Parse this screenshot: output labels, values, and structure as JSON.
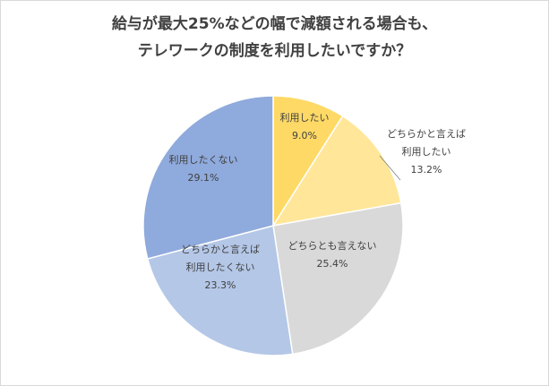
{
  "chart_data": {
    "type": "pie",
    "title": [
      "給与が最大25%などの幅で減額される場合も、",
      "テレワークの制度を利用したいですか？"
    ],
    "slices": [
      {
        "label": [
          "利用したい"
        ],
        "value": 9.0,
        "value_label": "9.0%",
        "color": "#ffd966"
      },
      {
        "label": [
          "どちらかと言えば",
          "利用したい"
        ],
        "value": 13.2,
        "value_label": "13.2%",
        "color": "#ffe699"
      },
      {
        "label": [
          "どちらとも言えない"
        ],
        "value": 25.4,
        "value_label": "25.4%",
        "color": "#d9d9d9"
      },
      {
        "label": [
          "どちらかと言えば",
          "利用したくない"
        ],
        "value": 23.3,
        "value_label": "23.3%",
        "color": "#b4c7e7"
      },
      {
        "label": [
          "利用したくない"
        ],
        "value": 29.1,
        "value_label": "29.1%",
        "color": "#8faadc"
      }
    ],
    "start_angle": "12 o'clock",
    "direction": "clockwise",
    "legend": "none"
  }
}
